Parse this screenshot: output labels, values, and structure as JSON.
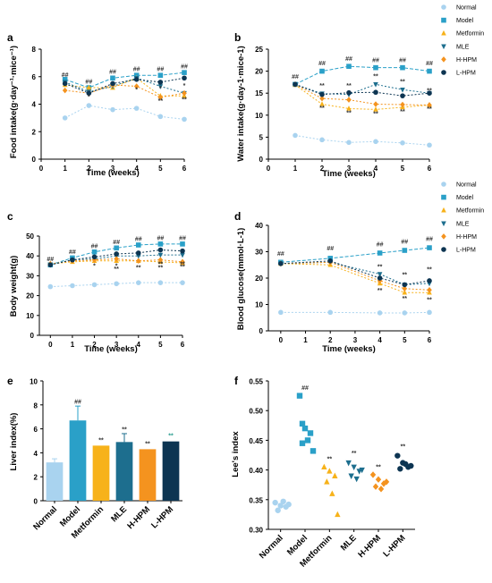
{
  "series_styles": [
    {
      "name": "Normal",
      "color": "#a9d3ef",
      "marker": "circle",
      "dash": "2,2"
    },
    {
      "name": "Model",
      "color": "#2aa0c8",
      "marker": "square",
      "dash": "4,2"
    },
    {
      "name": "Metformin",
      "color": "#f7b21a",
      "marker": "triangle",
      "dash": "2,2"
    },
    {
      "name": "MLE",
      "color": "#1d6e8e",
      "marker": "tridown",
      "dash": "2,2"
    },
    {
      "name": "H-HPM",
      "color": "#f4931f",
      "marker": "diamond",
      "dash": "2,2"
    },
    {
      "name": "L-HPM",
      "color": "#0d3552",
      "marker": "circle",
      "dash": "2,2"
    }
  ],
  "legend_top": [
    "Normal",
    "Model",
    "Metformin",
    "MLE",
    "H-HPM",
    "L-HPM"
  ],
  "legend_mid": [
    "Normal",
    "Model",
    "Metformin",
    "MLE",
    "H-HPM",
    "L-HPM"
  ],
  "chart_data": [
    {
      "panel": "a",
      "type": "line",
      "xlabel": "Time (weeks)",
      "ylabel": "Food intake(g·day⁻¹·mice⁻¹)",
      "x": [
        1,
        2,
        3,
        4,
        5,
        6
      ],
      "xlim": [
        0,
        6
      ],
      "ylim": [
        0,
        8
      ],
      "xticks": [
        0,
        1,
        2,
        3,
        4,
        5,
        6
      ],
      "yticks": [
        0,
        2,
        4,
        6,
        8
      ],
      "series": [
        {
          "name": "Normal",
          "values": [
            3.0,
            3.9,
            3.6,
            3.7,
            3.1,
            2.9
          ]
        },
        {
          "name": "Model",
          "values": [
            5.8,
            5.2,
            5.9,
            6.1,
            6.1,
            6.3
          ]
        },
        {
          "name": "Metformin",
          "values": [
            5.4,
            5.2,
            5.2,
            5.9,
            4.6,
            4.6
          ]
        },
        {
          "name": "MLE",
          "values": [
            5.6,
            4.9,
            5.3,
            5.9,
            5.3,
            4.8
          ]
        },
        {
          "name": "H-HPM",
          "values": [
            5.0,
            4.8,
            5.4,
            5.3,
            4.5,
            4.8
          ]
        },
        {
          "name": "L-HPM",
          "values": [
            5.5,
            4.8,
            5.5,
            5.8,
            5.6,
            5.9
          ]
        }
      ],
      "annotations": [
        {
          "text": "##",
          "x": 1,
          "y": 6.0
        },
        {
          "text": "##",
          "x": 2,
          "y": 5.5
        },
        {
          "text": "##",
          "x": 3,
          "y": 6.2
        },
        {
          "text": "##",
          "x": 4,
          "y": 6.4
        },
        {
          "text": "##",
          "x": 5,
          "y": 6.4
        },
        {
          "text": "##",
          "x": 6,
          "y": 6.6
        },
        {
          "text": "*",
          "x": 2,
          "y": 4.4
        },
        {
          "text": "*",
          "x": 4,
          "y": 4.9
        },
        {
          "text": "**",
          "x": 5,
          "y": 4.1
        },
        {
          "text": "*",
          "x": 5,
          "y": 5.0
        },
        {
          "text": "**",
          "x": 6,
          "y": 4.2
        },
        {
          "text": "*",
          "x": 6,
          "y": 5.2
        }
      ]
    },
    {
      "panel": "b",
      "type": "line",
      "xlabel": "Time (weeks)",
      "ylabel": "Water intake(g·day-1·mice-1)",
      "x": [
        1,
        2,
        3,
        4,
        5,
        6
      ],
      "xlim": [
        0,
        6
      ],
      "ylim": [
        0,
        25
      ],
      "xticks": [
        0,
        1,
        2,
        3,
        4,
        5,
        6
      ],
      "yticks": [
        0,
        5,
        10,
        15,
        20,
        25
      ],
      "series": [
        {
          "name": "Normal",
          "values": [
            5.4,
            4.4,
            3.8,
            4.0,
            3.7,
            3.2
          ]
        },
        {
          "name": "Model",
          "values": [
            17.0,
            20.0,
            21.1,
            20.8,
            20.8,
            20.0
          ]
        },
        {
          "name": "Metformin",
          "values": [
            16.9,
            12.5,
            11.5,
            11.3,
            11.8,
            12.3
          ]
        },
        {
          "name": "MLE",
          "values": [
            17.0,
            14.9,
            14.7,
            17.0,
            15.8,
            15.0
          ]
        },
        {
          "name": "H-HPM",
          "values": [
            17.0,
            13.8,
            13.5,
            12.5,
            12.4,
            12.3
          ]
        },
        {
          "name": "L-HPM",
          "values": [
            17.0,
            14.7,
            15.1,
            15.2,
            14.4,
            15.0
          ]
        }
      ],
      "annotations": [
        {
          "text": "##",
          "x": 1,
          "y": 18.3
        },
        {
          "text": "##",
          "x": 2,
          "y": 21.3
        },
        {
          "text": "##",
          "x": 3,
          "y": 22.4
        },
        {
          "text": "##",
          "x": 4,
          "y": 22.1
        },
        {
          "text": "##",
          "x": 5,
          "y": 22.1
        },
        {
          "text": "##",
          "x": 6,
          "y": 21.3
        },
        {
          "text": "**",
          "x": 2,
          "y": 16.3
        },
        {
          "text": "**",
          "x": 2,
          "y": 11.2
        },
        {
          "text": "**",
          "x": 3,
          "y": 16.3
        },
        {
          "text": "**",
          "x": 3,
          "y": 10.1
        },
        {
          "text": "**",
          "x": 4,
          "y": 18.4
        },
        {
          "text": "**",
          "x": 4,
          "y": 9.9
        },
        {
          "text": "**",
          "x": 5,
          "y": 17.2
        },
        {
          "text": "**",
          "x": 5,
          "y": 10.4
        },
        {
          "text": "**",
          "x": 6,
          "y": 11.0
        },
        {
          "text": "**",
          "x": 6,
          "y": 15.1
        }
      ]
    },
    {
      "panel": "c",
      "type": "line",
      "xlabel": "Time (weeks)",
      "ylabel": "Body weight(g)",
      "x": [
        0,
        1,
        2,
        3,
        4,
        5,
        6
      ],
      "xlim": [
        -0.5,
        6
      ],
      "ylim": [
        0,
        50
      ],
      "xticks": [
        0,
        1,
        2,
        3,
        4,
        5,
        6
      ],
      "yticks": [
        0,
        10,
        20,
        30,
        40,
        50
      ],
      "series": [
        {
          "name": "Normal",
          "values": [
            24.5,
            25.0,
            25.5,
            26.0,
            26.5,
            26.5,
            26.5
          ]
        },
        {
          "name": "Model",
          "values": [
            35.5,
            39.0,
            42.0,
            44.0,
            45.5,
            46.0,
            46.0
          ]
        },
        {
          "name": "Metformin",
          "values": [
            36.0,
            37.0,
            37.5,
            37.5,
            37.5,
            37.0,
            36.5
          ]
        },
        {
          "name": "MLE",
          "values": [
            35.5,
            38.0,
            38.5,
            40.0,
            40.0,
            40.5,
            40.5
          ]
        },
        {
          "name": "H-HPM",
          "values": [
            36.0,
            37.5,
            38.0,
            38.5,
            37.5,
            38.0,
            37.0
          ]
        },
        {
          "name": "L-HPM",
          "values": [
            35.5,
            38.0,
            39.5,
            41.0,
            41.5,
            43.0,
            42.5
          ]
        }
      ],
      "annotations": [
        {
          "text": "##",
          "x": 0,
          "y": 37.5
        },
        {
          "text": "##",
          "x": 1,
          "y": 41.0
        },
        {
          "text": "##",
          "x": 2,
          "y": 44.0
        },
        {
          "text": "##",
          "x": 3,
          "y": 46.0
        },
        {
          "text": "##",
          "x": 4,
          "y": 47.5
        },
        {
          "text": "##",
          "x": 5,
          "y": 48.0
        },
        {
          "text": "##",
          "x": 6,
          "y": 48.0
        },
        {
          "text": "*",
          "x": 2,
          "y": 34.0
        },
        {
          "text": "*",
          "x": 3,
          "y": 34.0
        },
        {
          "text": "**",
          "x": 3,
          "y": 32.5
        },
        {
          "text": "**",
          "x": 4,
          "y": 33.0
        },
        {
          "text": "**",
          "x": 5,
          "y": 33.0
        },
        {
          "text": "**",
          "x": 5,
          "y": 35.0
        },
        {
          "text": "**",
          "x": 6,
          "y": 33.5
        },
        {
          "text": "**",
          "x": 6,
          "y": 35.0
        }
      ]
    },
    {
      "panel": "d",
      "type": "line",
      "xlabel": "Time (weeks)",
      "ylabel": "Blood glucose(mmol·L-1)",
      "x": [
        0,
        2,
        4,
        5,
        6
      ],
      "xlim": [
        -0.5,
        6
      ],
      "ylim": [
        0,
        40
      ],
      "xticks": [
        0,
        1,
        2,
        3,
        4,
        5,
        6
      ],
      "yticks": [
        0,
        10,
        20,
        30,
        40
      ],
      "series": [
        {
          "name": "Normal",
          "values": [
            7.0,
            7.0,
            6.8,
            6.8,
            7.0
          ]
        },
        {
          "name": "Model",
          "values": [
            26.0,
            27.5,
            29.5,
            30.5,
            31.5
          ]
        },
        {
          "name": "Metformin",
          "values": [
            25.5,
            25.0,
            18.0,
            14.5,
            14.5
          ]
        },
        {
          "name": "MLE",
          "values": [
            25.5,
            26.0,
            21.5,
            17.5,
            18.0
          ]
        },
        {
          "name": "H-HPM",
          "values": [
            25.5,
            26.0,
            19.0,
            16.0,
            15.5
          ]
        },
        {
          "name": "L-HPM",
          "values": [
            25.5,
            26.5,
            20.0,
            17.5,
            19.0
          ]
        }
      ],
      "annotations": [
        {
          "text": "##",
          "x": 0,
          "y": 28.5
        },
        {
          "text": "##",
          "x": 2,
          "y": 30.5
        },
        {
          "text": "##",
          "x": 4,
          "y": 32.0
        },
        {
          "text": "##",
          "x": 5,
          "y": 33.0
        },
        {
          "text": "##",
          "x": 6,
          "y": 34.0
        },
        {
          "text": "**",
          "x": 4,
          "y": 23.5
        },
        {
          "text": "**",
          "x": 4,
          "y": 14.5
        },
        {
          "text": "**",
          "x": 5,
          "y": 20.5
        },
        {
          "text": "**",
          "x": 5,
          "y": 11.5
        },
        {
          "text": "**",
          "x": 6,
          "y": 22.5
        },
        {
          "text": "**",
          "x": 6,
          "y": 11.0
        }
      ]
    },
    {
      "panel": "e",
      "type": "bar",
      "ylabel": "Liver index(%)",
      "categories": [
        "Normal",
        "Model",
        "Metformin",
        "MLE",
        "H-HPM",
        "L-HPM"
      ],
      "values": [
        3.2,
        6.7,
        4.6,
        4.9,
        4.3,
        4.95
      ],
      "errors": [
        0.3,
        1.2,
        0.0,
        0.7,
        0.0,
        0.0
      ],
      "colors": [
        "#a9d3ef",
        "#2aa0c8",
        "#f7b21a",
        "#1d6e8e",
        "#f4931f",
        "#0d3552"
      ],
      "ylim": [
        0,
        10
      ],
      "yticks": [
        0,
        2,
        4,
        6,
        8,
        10
      ],
      "annotations": [
        {
          "text": "##",
          "category": "Model",
          "y": 8.1,
          "color": "#333333"
        },
        {
          "text": "**",
          "category": "Metformin",
          "y": 4.9,
          "color": "#333333"
        },
        {
          "text": "**",
          "category": "MLE",
          "y": 5.8,
          "color": "#333333"
        },
        {
          "text": "**",
          "category": "H-HPM",
          "y": 4.6,
          "color": "#333333"
        },
        {
          "text": "**",
          "category": "L-HPM",
          "y": 5.25,
          "color": "#2a9d8f"
        }
      ]
    },
    {
      "panel": "f",
      "type": "scatter",
      "ylabel": "Lee's index",
      "categories": [
        "Normal",
        "Model",
        "Metformin",
        "MLE",
        "H-HPM",
        "L-HPM"
      ],
      "colors": [
        "#a9d3ef",
        "#2aa0c8",
        "#f7b21a",
        "#1d6e8e",
        "#f4931f",
        "#0d3552"
      ],
      "markers": [
        "circle",
        "square",
        "triangle",
        "tridown",
        "diamond",
        "circle"
      ],
      "points": [
        [
          0.345,
          0.34,
          0.338,
          0.332,
          0.347,
          0.342
        ],
        [
          0.525,
          0.47,
          0.462,
          0.478,
          0.45,
          0.432,
          0.445
        ],
        [
          0.405,
          0.398,
          0.39,
          0.38,
          0.36,
          0.325
        ],
        [
          0.412,
          0.405,
          0.398,
          0.39,
          0.385,
          0.4
        ],
        [
          0.392,
          0.384,
          0.377,
          0.372,
          0.368,
          0.38
        ],
        [
          0.424,
          0.412,
          0.405,
          0.402,
          0.41,
          0.407
        ]
      ],
      "ylim": [
        0.3,
        0.55
      ],
      "yticks": [
        "0.30",
        "0.35",
        "0.40",
        "0.45",
        "0.50",
        "0.55"
      ],
      "annotations": [
        {
          "text": "##",
          "category": "Model",
          "y": 0.535
        },
        {
          "text": "**",
          "category": "Metformin",
          "y": 0.415
        },
        {
          "text": "**",
          "category": "MLE",
          "y": 0.425
        },
        {
          "text": "**",
          "category": "H-HPM",
          "y": 0.402
        },
        {
          "text": "**",
          "category": "L-HPM",
          "y": 0.436
        }
      ]
    }
  ]
}
